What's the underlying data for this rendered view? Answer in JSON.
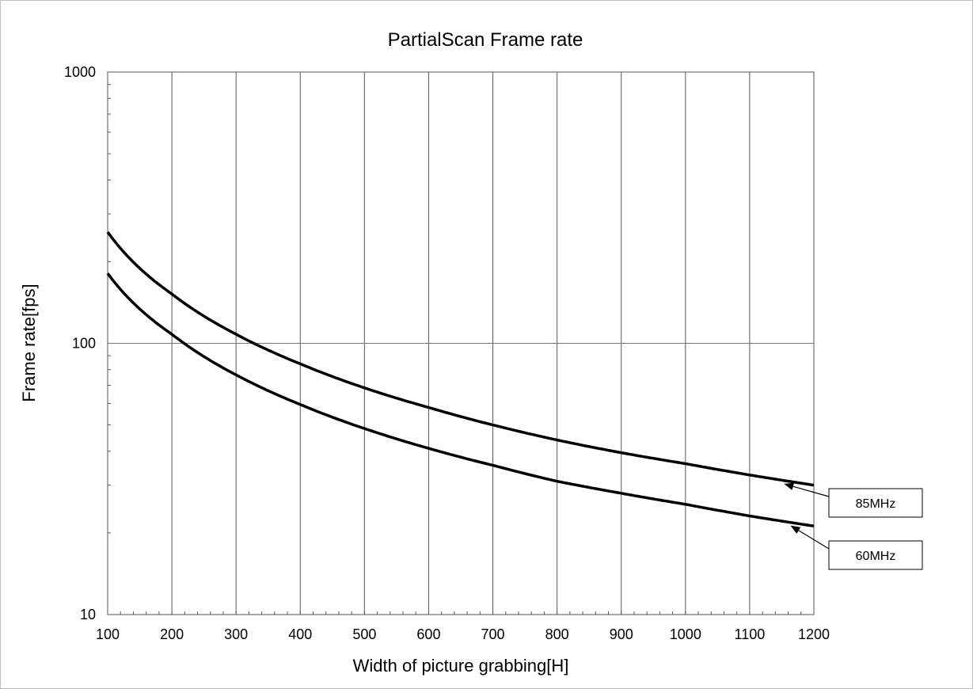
{
  "chart_data": {
    "type": "line",
    "title": "PartialScan  Frame rate",
    "xlabel": "Width of picture grabbing[H]",
    "ylabel": "Frame rate[fps]",
    "xlim": [
      100,
      1200
    ],
    "ylim": [
      10,
      1000
    ],
    "yscale": "log",
    "grid": true,
    "x_ticks": [
      "100",
      "200",
      "300",
      "400",
      "500",
      "600",
      "700",
      "800",
      "900",
      "1000",
      "1100",
      "1200"
    ],
    "y_ticks": [
      "10",
      "100",
      "1000"
    ],
    "x": [
      100,
      200,
      300,
      400,
      500,
      600,
      700,
      800,
      900,
      1000,
      1100,
      1200
    ],
    "series": [
      {
        "name": "85MHz",
        "values": [
          257,
          152,
          108,
          84,
          68.5,
          58,
          50,
          44,
          39.5,
          36,
          32.7,
          30
        ]
      },
      {
        "name": "60MHz",
        "values": [
          181,
          108,
          76.5,
          59.5,
          48.5,
          41,
          35.5,
          31,
          28,
          25.5,
          23.1,
          21.2
        ]
      }
    ]
  }
}
